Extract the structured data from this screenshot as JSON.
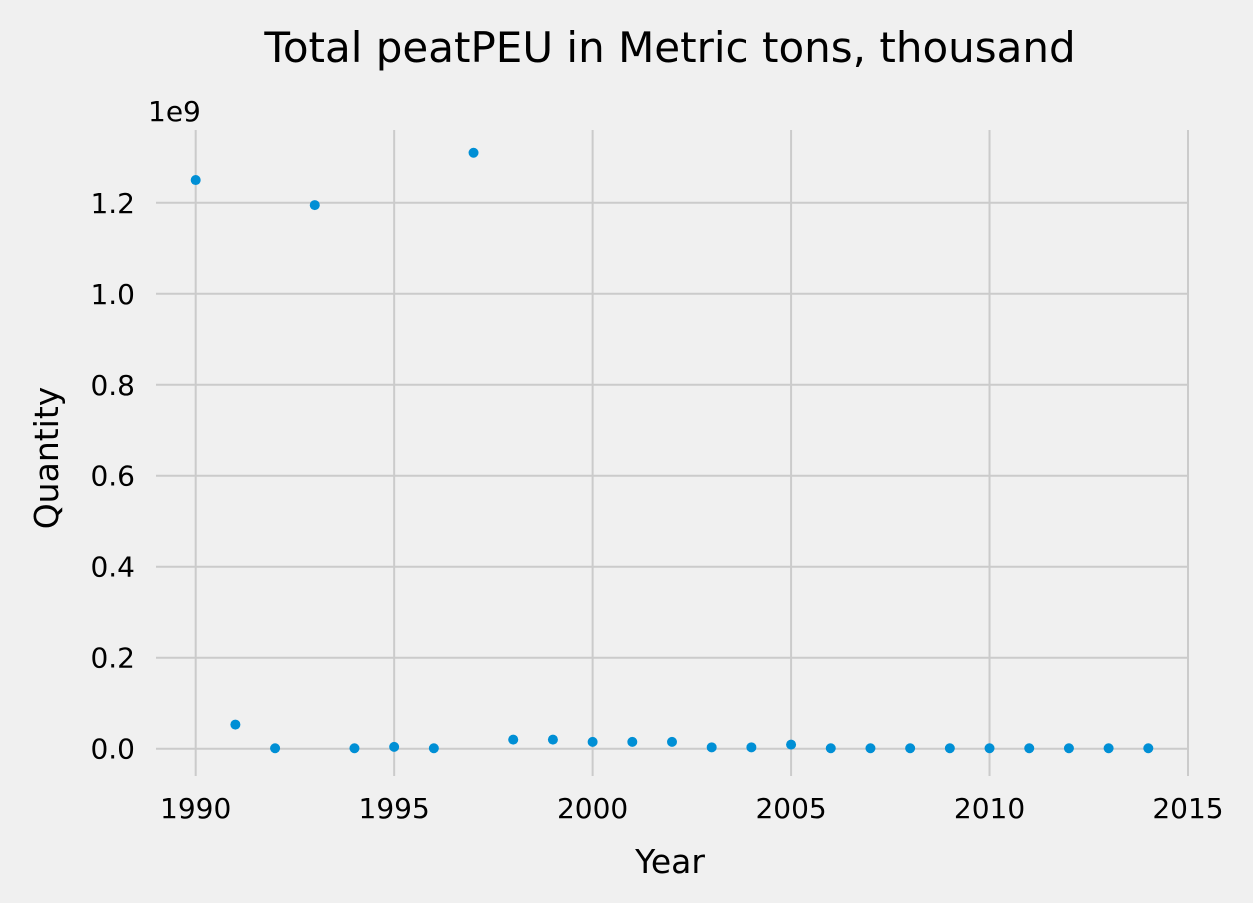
{
  "chart_data": {
    "type": "scatter",
    "title": "Total peatPEU in Metric tons,  thousand",
    "xlabel": "Year",
    "ylabel": "Quantity",
    "y_offset_label": "1e9",
    "xlim": [
      1989,
      2015
    ],
    "ylim": [
      -0.06,
      1.36
    ],
    "x_ticks": [
      1990,
      1995,
      2000,
      2005,
      2010,
      2015
    ],
    "x_tick_labels": [
      "1990",
      "1995",
      "2000",
      "2005",
      "2010",
      "2015"
    ],
    "y_ticks": [
      0.0,
      0.2,
      0.4,
      0.6,
      0.8,
      1.0,
      1.2
    ],
    "y_tick_labels": [
      "0.0",
      "0.2",
      "0.4",
      "0.6",
      "0.8",
      "1.0",
      "1.2"
    ],
    "grid": true,
    "marker_color": "#008fd5",
    "background_color": "#f0f0f0",
    "grid_color": "#cbcbcb",
    "x": [
      1990,
      1991,
      1992,
      1993,
      1994,
      1995,
      1996,
      1997,
      1998,
      1999,
      2000,
      2001,
      2002,
      2003,
      2004,
      2005,
      2006,
      2007,
      2008,
      2009,
      2010,
      2011,
      2012,
      2013,
      2014
    ],
    "y": [
      1.25,
      0.053,
      0.001,
      1.195,
      0.001,
      0.004,
      0.001,
      1.31,
      0.02,
      0.02,
      0.015,
      0.015,
      0.015,
      0.003,
      0.003,
      0.009,
      0.001,
      0.001,
      0.001,
      0.001,
      0.001,
      0.001,
      0.001,
      0.001,
      0.001
    ]
  }
}
